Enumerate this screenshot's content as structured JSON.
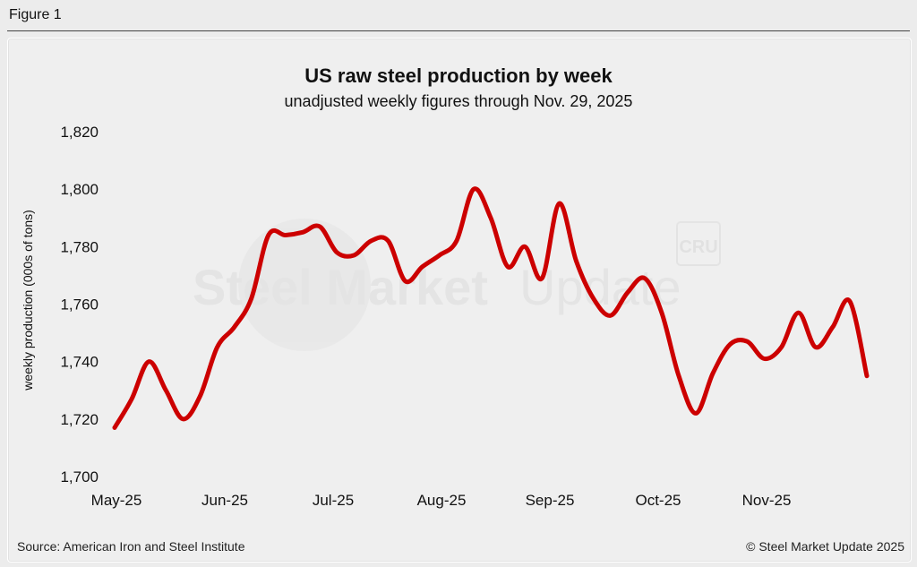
{
  "figure_label": "Figure 1",
  "footer": {
    "source": "Source: American Iron and Steel Institute",
    "copyright": "© Steel Market Update 2025"
  },
  "watermark": {
    "text_bold": "Steel Market",
    "text_light": "Update",
    "badge": "CRU"
  },
  "colors": {
    "line": "#cc0000",
    "background": "#efefef",
    "text": "#111111"
  },
  "chart_data": {
    "type": "line",
    "title": "US raw steel production by week",
    "subtitle": "unadjusted weekly figures through Nov. 29, 2025",
    "xlabel": "",
    "ylabel": "weekly production (000s of tons)",
    "ylim": [
      1700,
      1820
    ],
    "yticks": [
      1700,
      1720,
      1740,
      1760,
      1780,
      1800,
      1820
    ],
    "ytick_labels": [
      "1,700",
      "1,720",
      "1,740",
      "1,760",
      "1,780",
      "1,800",
      "1,820"
    ],
    "xticks": [
      "May-25",
      "Jun-25",
      "Jul-25",
      "Aug-25",
      "Sep-25",
      "Oct-25",
      "Nov-25"
    ],
    "grid": false,
    "series": [
      {
        "name": "Raw steel production",
        "values": [
          1717,
          1727,
          1740,
          1730,
          1720,
          1728,
          1745,
          1752,
          1762,
          1784,
          1784,
          1785,
          1787,
          1778,
          1777,
          1782,
          1782,
          1768,
          1773,
          1777,
          1782,
          1800,
          1790,
          1773,
          1780,
          1769,
          1795,
          1775,
          1762,
          1756,
          1764,
          1769,
          1757,
          1735,
          1722,
          1736,
          1746,
          1747,
          1741,
          1745,
          1757,
          1745,
          1752,
          1761,
          1735
        ]
      }
    ]
  }
}
